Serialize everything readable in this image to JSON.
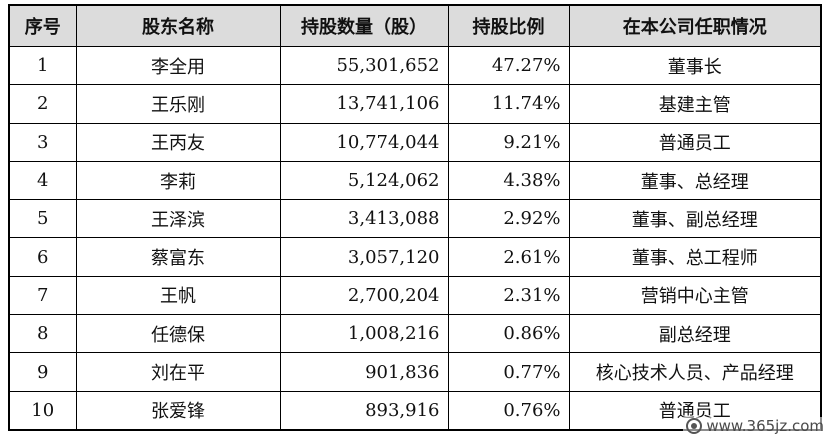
{
  "table": {
    "headers": [
      "序号",
      "股东名称",
      "持股数量（股）",
      "持股比例",
      "在本公司任职情况"
    ],
    "rows": [
      [
        "1",
        "李全用",
        "55,301,652",
        "47.27%",
        "董事长"
      ],
      [
        "2",
        "王乐刚",
        "13,741,106",
        "11.74%",
        "基建主管"
      ],
      [
        "3",
        "王丙友",
        "10,774,044",
        "9.21%",
        "普通员工"
      ],
      [
        "4",
        "李莉",
        "5,124,062",
        "4.38%",
        "董事、总经理"
      ],
      [
        "5",
        "王泽滨",
        "3,413,088",
        "2.92%",
        "董事、副总经理"
      ],
      [
        "6",
        "蔡富东",
        "3,057,120",
        "2.61%",
        "董事、总工程师"
      ],
      [
        "7",
        "王帆",
        "2,700,204",
        "2.31%",
        "营销中心主管"
      ],
      [
        "8",
        "任德保",
        "1,008,216",
        "0.86%",
        "副总经理"
      ],
      [
        "9",
        "刘在平",
        "901,836",
        "0.77%",
        "核心技术人员、产品经理"
      ],
      [
        "10",
        "张爱锋",
        "893,916",
        "0.76%",
        "普通员工"
      ]
    ]
  },
  "watermark": {
    "text": "www.365jz.com",
    "icon": "site-logo-icon"
  }
}
